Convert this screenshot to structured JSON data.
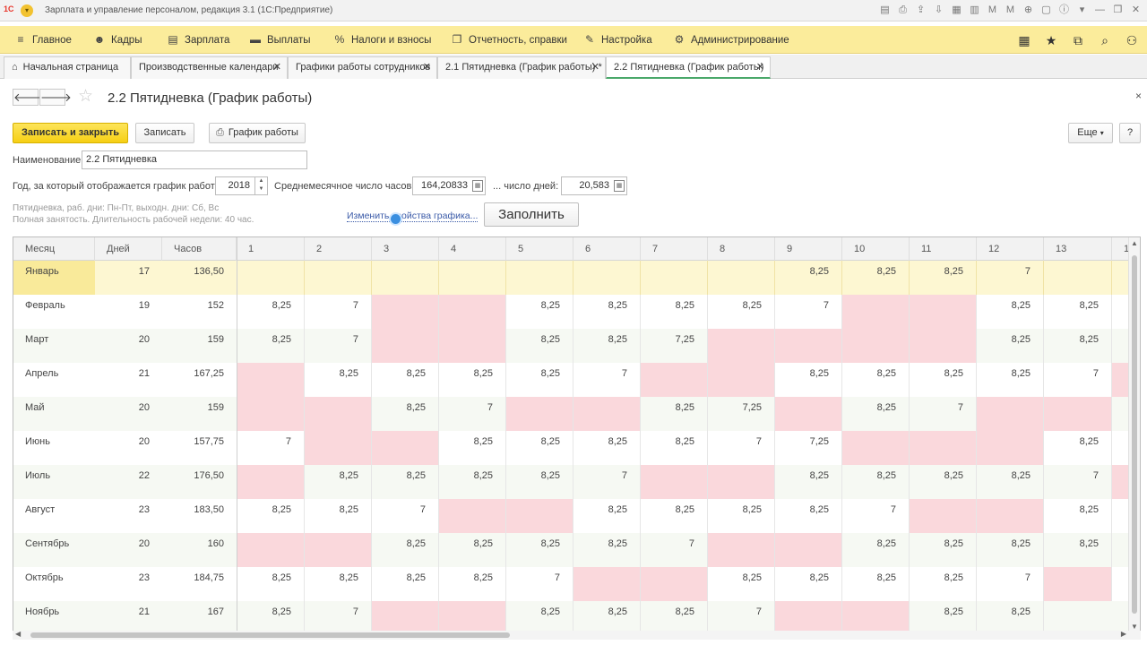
{
  "window": {
    "logo": "1С",
    "title": "Зарплата и управление персоналом, редакция 3.1  (1С:Предприятие)",
    "icons": [
      "save-icon",
      "print-icon",
      "upload-icon",
      "download-icon",
      "calendar-icon",
      "table-icon",
      "memory-plus-icon",
      "memory-minus-icon",
      "zoom-icon",
      "panel-icon",
      "info-icon",
      "chevron-down-icon",
      "minimize-icon",
      "restore-icon",
      "close-icon"
    ],
    "icon_glyphs": [
      "▤",
      "⎙",
      "⇪",
      "⇩",
      "▦",
      "▥",
      "M",
      "M",
      "⊕",
      "▢",
      "ⓘ",
      "▾",
      "—",
      "❐",
      "✕"
    ]
  },
  "menu": {
    "items": [
      {
        "label": "Главное",
        "icon": "≡"
      },
      {
        "label": "Кадры",
        "icon": "☻"
      },
      {
        "label": "Зарплата",
        "icon": "▤"
      },
      {
        "label": "Выплаты",
        "icon": "▬"
      },
      {
        "label": "Налоги и взносы",
        "icon": "%"
      },
      {
        "label": "Отчетность, справки",
        "icon": "❐"
      },
      {
        "label": "Настройка",
        "icon": "✎"
      },
      {
        "label": "Администрирование",
        "icon": "⚙"
      }
    ],
    "right_icons": [
      "▦",
      "★",
      "⧉",
      "⌕",
      "⚇"
    ]
  },
  "tabs": [
    {
      "label": "Начальная страница",
      "home": "⌂"
    },
    {
      "label": "Производственные календари",
      "close": "✕"
    },
    {
      "label": "Графики работы сотрудников",
      "close": "✕"
    },
    {
      "label": "2.1 Пятидневка (График работы) *",
      "close": "✕"
    },
    {
      "label": "2.2 Пятидневка (График работы)",
      "close": "✕"
    }
  ],
  "form": {
    "back": "🡐",
    "forward": "🡒",
    "star": "☆",
    "title": "2.2 Пятидневка (График работы)",
    "more_dots": "⋮",
    "close": "×",
    "buttons": {
      "save_close": "Записать и закрыть",
      "save": "Записать",
      "print_icon": "⎙",
      "schedule": "График работы",
      "more": "Еще",
      "more_arrow": "▾",
      "help": "?"
    },
    "name_label": "Наименование:",
    "name_value": "2.2 Пятидневка",
    "year_label": "Год, за который отображается график работы:",
    "year_value": "2018",
    "avg_hours_label": "Среднемесячное число часов:",
    "avg_hours_value": "164,20833",
    "avg_days_label": "... число дней:",
    "avg_days_value": "20,583",
    "info_line1": "Пятидневка, раб. дни: Пн-Пт, выходн. дни: Сб, Вс",
    "info_line2": "Полная занятость. Длительность рабочей недели: 40 час.",
    "change_link": "Изменить свойства графика...",
    "fill_button": "Заполнить"
  },
  "grid": {
    "headers": [
      "Месяц",
      "Дней",
      "Часов",
      "1",
      "2",
      "3",
      "4",
      "5",
      "6",
      "7",
      "8",
      "9",
      "10",
      "11",
      "12",
      "13",
      "1"
    ],
    "rows": [
      {
        "month": "Январь",
        "days": "17",
        "hours": "136,50",
        "cells": [
          "",
          "",
          "",
          "",
          "",
          "",
          "",
          "",
          "8,25",
          "8,25",
          "8,25",
          "7",
          ""
        ],
        "off": [
          0,
          0,
          0,
          0,
          0,
          0,
          0,
          0,
          0,
          0,
          0,
          0,
          0
        ],
        "selected": true
      },
      {
        "month": "Февраль",
        "days": "19",
        "hours": "152",
        "cells": [
          "8,25",
          "7",
          "",
          "",
          "8,25",
          "8,25",
          "8,25",
          "8,25",
          "7",
          "",
          "",
          "8,25",
          "8,25"
        ],
        "off": [
          0,
          0,
          1,
          1,
          0,
          0,
          0,
          0,
          0,
          1,
          1,
          0,
          0
        ]
      },
      {
        "month": "Март",
        "days": "20",
        "hours": "159",
        "cells": [
          "8,25",
          "7",
          "",
          "",
          "8,25",
          "8,25",
          "7,25",
          "",
          "",
          "",
          "",
          "8,25",
          "8,25"
        ],
        "off": [
          0,
          0,
          1,
          1,
          0,
          0,
          0,
          1,
          1,
          1,
          1,
          0,
          0
        ]
      },
      {
        "month": "Апрель",
        "days": "21",
        "hours": "167,25",
        "cells": [
          "",
          "8,25",
          "8,25",
          "8,25",
          "8,25",
          "7",
          "",
          "",
          "8,25",
          "8,25",
          "8,25",
          "8,25",
          "7"
        ],
        "off": [
          1,
          0,
          0,
          0,
          0,
          0,
          1,
          1,
          0,
          0,
          0,
          0,
          0
        ]
      },
      {
        "month": "Май",
        "days": "20",
        "hours": "159",
        "cells": [
          "",
          "",
          "8,25",
          "7",
          "",
          "",
          "8,25",
          "7,25",
          "",
          "8,25",
          "7",
          "",
          ""
        ],
        "off": [
          1,
          1,
          0,
          0,
          1,
          1,
          0,
          0,
          1,
          0,
          0,
          1,
          1
        ]
      },
      {
        "month": "Июнь",
        "days": "20",
        "hours": "157,75",
        "cells": [
          "7",
          "",
          "",
          "8,25",
          "8,25",
          "8,25",
          "8,25",
          "7",
          "7,25",
          "",
          "",
          "",
          "8,25"
        ],
        "off": [
          0,
          1,
          1,
          0,
          0,
          0,
          0,
          0,
          0,
          1,
          1,
          1,
          0
        ]
      },
      {
        "month": "Июль",
        "days": "22",
        "hours": "176,50",
        "cells": [
          "",
          "8,25",
          "8,25",
          "8,25",
          "8,25",
          "7",
          "",
          "",
          "8,25",
          "8,25",
          "8,25",
          "8,25",
          "7"
        ],
        "off": [
          1,
          0,
          0,
          0,
          0,
          0,
          1,
          1,
          0,
          0,
          0,
          0,
          0
        ]
      },
      {
        "month": "Август",
        "days": "23",
        "hours": "183,50",
        "cells": [
          "8,25",
          "8,25",
          "7",
          "",
          "",
          "8,25",
          "8,25",
          "8,25",
          "8,25",
          "7",
          "",
          "",
          "8,25"
        ],
        "off": [
          0,
          0,
          0,
          1,
          1,
          0,
          0,
          0,
          0,
          0,
          1,
          1,
          0
        ]
      },
      {
        "month": "Сентябрь",
        "days": "20",
        "hours": "160",
        "cells": [
          "",
          "",
          "8,25",
          "8,25",
          "8,25",
          "8,25",
          "7",
          "",
          "",
          "8,25",
          "8,25",
          "8,25",
          "8,25"
        ],
        "off": [
          1,
          1,
          0,
          0,
          0,
          0,
          0,
          1,
          1,
          0,
          0,
          0,
          0
        ]
      },
      {
        "month": "Октябрь",
        "days": "23",
        "hours": "184,75",
        "cells": [
          "8,25",
          "8,25",
          "8,25",
          "8,25",
          "7",
          "",
          "",
          "8,25",
          "8,25",
          "8,25",
          "8,25",
          "7",
          ""
        ],
        "off": [
          0,
          0,
          0,
          0,
          0,
          1,
          1,
          0,
          0,
          0,
          0,
          0,
          1
        ]
      },
      {
        "month": "Ноябрь",
        "days": "21",
        "hours": "167",
        "cells": [
          "8,25",
          "7",
          "",
          "",
          "8,25",
          "8,25",
          "8,25",
          "7",
          "",
          "",
          "8,25",
          "8,25"
        ],
        "off": [
          0,
          0,
          1,
          1,
          0,
          0,
          0,
          0,
          1,
          1,
          0,
          0,
          0
        ]
      }
    ],
    "scroll": {
      "up": "▲",
      "down": "▼",
      "left": "◀",
      "right": "▶"
    }
  },
  "colors": {
    "menu_bg": "#fbec9b",
    "primary_button": "#f6cf14",
    "offday": "#fad8dc",
    "selected_row": "#fdf7d2",
    "selected_cell": "#f9ea9a",
    "link": "#3b5ba8",
    "active_tab_underline": "#4aa86a"
  }
}
